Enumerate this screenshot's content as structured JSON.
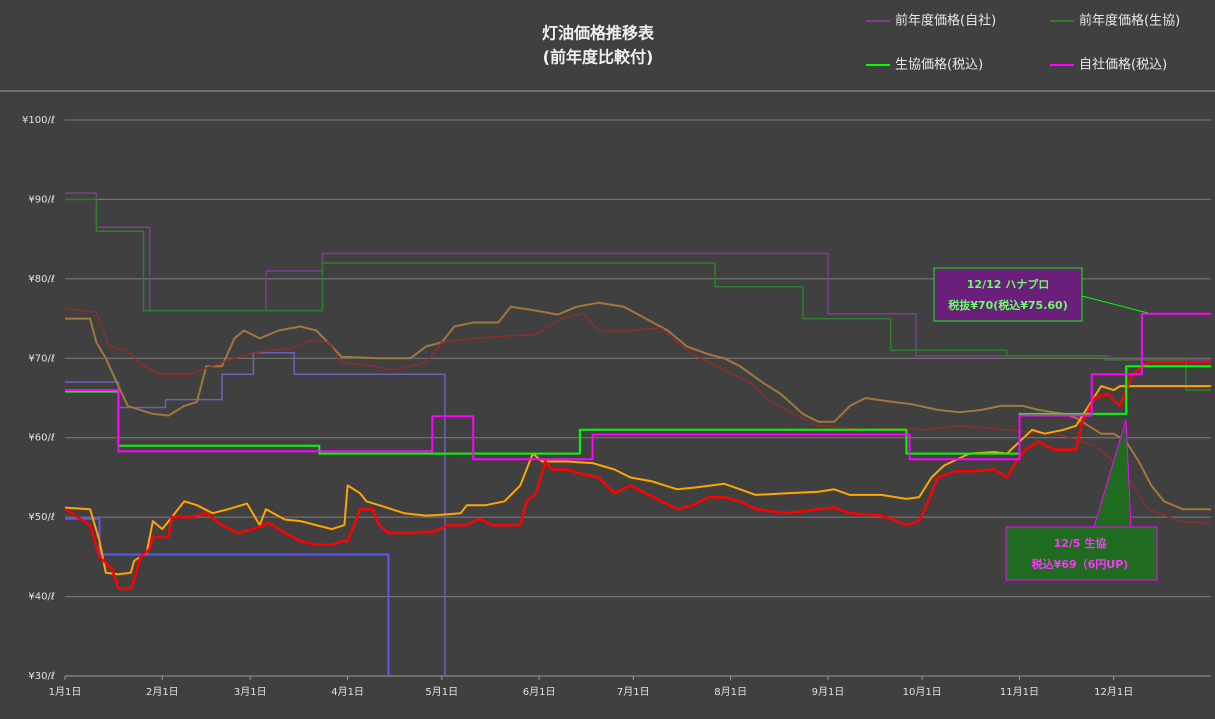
{
  "chart_data": {
    "type": "line",
    "title": "灯油価格推移表",
    "subtitle": "(前年度比較付)",
    "xlim": [
      0,
      365
    ],
    "xticks": [
      {
        "value": 0,
        "label": "1月1日"
      },
      {
        "value": 31,
        "label": "2月1日"
      },
      {
        "value": 59,
        "label": "3月1日"
      },
      {
        "value": 90,
        "label": "4月1日"
      },
      {
        "value": 120,
        "label": "5月1日"
      },
      {
        "value": 151,
        "label": "6月1日"
      },
      {
        "value": 181,
        "label": "7月1日"
      },
      {
        "value": 212,
        "label": "8月1日"
      },
      {
        "value": 243,
        "label": "9月1日"
      },
      {
        "value": 273,
        "label": "10月1日"
      },
      {
        "value": 304,
        "label": "11月1日"
      },
      {
        "value": 334,
        "label": "12月1日"
      }
    ],
    "ylim": [
      30,
      100
    ],
    "yticks": [
      {
        "value": 30,
        "label": "¥30/ℓ"
      },
      {
        "value": 40,
        "label": "¥40/ℓ"
      },
      {
        "value": 50,
        "label": "¥50/ℓ"
      },
      {
        "value": 60,
        "label": "¥60/ℓ"
      },
      {
        "value": 70,
        "label": "¥70/ℓ"
      },
      {
        "value": 80,
        "label": "¥80/ℓ"
      },
      {
        "value": 90,
        "label": "¥90/ℓ"
      },
      {
        "value": 100,
        "label": "¥100/ℓ"
      }
    ],
    "grid": true,
    "series": [
      {
        "name": "前年度価格(自社)",
        "color": "#7b3f8c",
        "width": 1.5,
        "x": [
          0,
          10,
          10,
          27,
          27,
          64,
          64,
          82,
          82,
          243,
          243,
          271,
          271,
          333,
          333,
          365
        ],
        "values": [
          90.8,
          90.8,
          86.5,
          86.5,
          76,
          76,
          81,
          81,
          83.2,
          83.2,
          75.6,
          75.6,
          70.3,
          70.3,
          69.8,
          69.8
        ]
      },
      {
        "name": "前年度価格(生協)",
        "color": "#2f7d2f",
        "width": 1.5,
        "x": [
          0,
          10,
          10,
          25,
          25,
          82,
          82,
          207,
          207,
          235,
          235,
          263,
          263,
          300,
          300,
          331,
          331,
          357,
          357,
          365
        ],
        "values": [
          90,
          90,
          86,
          86,
          76,
          76,
          82,
          82,
          79,
          79,
          75,
          75,
          71,
          71,
          70.3,
          70.3,
          69.8,
          69.8,
          66,
          66
        ]
      },
      {
        "color": "#5a5aee",
        "width": 2,
        "x": [
          0,
          11,
          11,
          103,
          103
        ],
        "values": [
          49.8,
          49.8,
          45.3,
          45.3,
          30
        ]
      },
      {
        "color": "#6b63b5",
        "width": 1.5,
        "x": [
          0,
          17,
          17,
          32,
          32,
          50,
          50,
          60,
          60,
          73,
          73,
          121,
          121
        ],
        "values": [
          67,
          67,
          63.8,
          63.8,
          64.8,
          64.8,
          68,
          68,
          70.7,
          70.7,
          68,
          68,
          30
        ]
      },
      {
        "color": "#a0783c",
        "width": 2,
        "x": [
          0,
          8,
          10,
          13,
          17,
          20,
          28,
          33,
          38,
          42,
          45,
          50,
          54,
          57,
          62,
          68,
          75,
          80,
          85,
          88,
          100,
          110,
          115,
          120,
          124,
          130,
          138,
          142,
          150,
          157,
          163,
          170,
          178,
          185,
          192,
          198,
          205,
          210,
          215,
          222,
          228,
          235,
          240,
          245,
          250,
          255,
          262,
          270,
          278,
          285,
          292,
          298,
          305,
          310,
          318,
          322,
          326,
          330,
          334,
          338,
          342,
          346,
          350,
          356,
          365
        ],
        "values": [
          75,
          75,
          72,
          70,
          66.5,
          64,
          63,
          62.8,
          64,
          64.5,
          69,
          69,
          72.5,
          73.5,
          72.5,
          73.5,
          74,
          73.5,
          71.5,
          70.2,
          70,
          70,
          71.5,
          72,
          74,
          74.5,
          74.5,
          76.5,
          76,
          75.5,
          76.5,
          77,
          76.5,
          75,
          73.5,
          71.5,
          70.5,
          70,
          69,
          67,
          65.5,
          63,
          62,
          62,
          64,
          65,
          64.6,
          64.2,
          63.5,
          63.2,
          63.5,
          64,
          64,
          63.5,
          63,
          62.5,
          61.5,
          60.5,
          60.5,
          59.5,
          57,
          54,
          52,
          51,
          51
        ]
      },
      {
        "color": "#8b2e2e",
        "width": 1.5,
        "x": [
          0,
          10,
          14,
          20,
          24,
          30,
          40,
          50,
          58,
          65,
          72,
          78,
          84,
          88,
          95,
          105,
          115,
          120,
          130,
          140,
          150,
          158,
          165,
          170,
          180,
          190,
          195,
          200,
          210,
          218,
          225,
          232,
          240,
          255,
          265,
          275,
          285,
          295,
          305,
          315,
          320,
          328,
          334,
          340,
          345,
          355,
          365
        ],
        "values": [
          76.3,
          75.8,
          71.5,
          71,
          69.3,
          68,
          68,
          69.5,
          70.5,
          71,
          71.2,
          72.3,
          72,
          69.5,
          69.2,
          68.5,
          69.5,
          72,
          72.5,
          72.8,
          73,
          75,
          75.7,
          73.4,
          73.5,
          73.8,
          72,
          70.5,
          68.5,
          67,
          64.5,
          63,
          61.5,
          61,
          61.2,
          61,
          61.5,
          61.2,
          60.8,
          60.5,
          60,
          59,
          57,
          54,
          51,
          49.5,
          49.2
        ]
      },
      {
        "color": "#ffa500",
        "width": 2,
        "x": [
          0,
          8,
          11,
          13,
          17,
          21,
          22,
          26,
          28,
          31,
          34,
          38,
          42,
          47,
          52,
          58,
          62,
          64,
          70,
          75,
          80,
          85,
          89,
          90,
          94,
          96,
          100,
          108,
          115,
          120,
          126,
          128,
          134,
          140,
          145,
          149,
          152,
          160,
          168,
          175,
          180,
          187,
          195,
          200,
          210,
          215,
          220,
          230,
          240,
          245,
          250,
          260,
          268,
          272,
          276,
          280,
          288,
          296,
          300,
          304,
          308,
          312,
          318,
          322,
          326,
          330,
          334,
          336,
          365
        ],
        "values": [
          51.2,
          51,
          47,
          43,
          42.8,
          43,
          44.5,
          45.5,
          49.5,
          48.5,
          50,
          52,
          51.5,
          50.5,
          51,
          51.7,
          49,
          51,
          49.7,
          49.5,
          49,
          48.5,
          49,
          54,
          53,
          52,
          51.5,
          50.5,
          50.2,
          50.3,
          50.5,
          51.5,
          51.5,
          52,
          54,
          58,
          57,
          57,
          56.8,
          56,
          55,
          54.5,
          53.5,
          53.7,
          54.2,
          53.5,
          52.8,
          53,
          53.2,
          53.5,
          52.8,
          52.8,
          52.3,
          52.5,
          55,
          56.5,
          58,
          58.2,
          58,
          59.5,
          61,
          60.5,
          61,
          61.5,
          64,
          66.5,
          66,
          66.5,
          66.5
        ]
      },
      {
        "color": "#ff0000",
        "width": 2.5,
        "x": [
          0,
          8,
          11,
          15,
          17,
          21,
          22,
          24,
          27,
          28,
          33,
          34,
          40,
          45,
          50,
          55,
          60,
          65,
          70,
          75,
          80,
          85,
          88,
          90,
          92,
          94,
          98,
          100,
          103,
          110,
          118,
          122,
          128,
          132,
          136,
          145,
          147,
          150,
          153,
          155,
          160,
          164,
          170,
          175,
          180,
          185,
          190,
          195,
          200,
          205,
          210,
          215,
          220,
          230,
          240,
          245,
          250,
          260,
          265,
          268,
          272,
          275,
          278,
          284,
          290,
          296,
          300,
          303,
          306,
          310,
          315,
          322,
          324,
          328,
          332,
          336,
          340,
          345,
          365
        ],
        "values": [
          51,
          49,
          45,
          43.5,
          41,
          41,
          42,
          45,
          46,
          47.5,
          47.5,
          50,
          50,
          50.5,
          49,
          48,
          48.5,
          49.3,
          48,
          47,
          46.5,
          46.5,
          47,
          47,
          49,
          51,
          51,
          49,
          48,
          48,
          48.2,
          49,
          49,
          49.8,
          49,
          49,
          52,
          53,
          57,
          56,
          56,
          55.5,
          55,
          53,
          54,
          53,
          52,
          51,
          51.5,
          52.5,
          52.5,
          52,
          51,
          50.5,
          51,
          51.2,
          50.5,
          50.2,
          49.5,
          49,
          49.5,
          52,
          55,
          55.8,
          55.8,
          56,
          55,
          57,
          58.5,
          59.5,
          58.5,
          58.5,
          62,
          65,
          65.5,
          64,
          68,
          69.5,
          69.5
        ]
      },
      {
        "name": "生協価格(税込)",
        "color": "#00ff00",
        "width": 2,
        "x": [
          0,
          17,
          17,
          81,
          81,
          164,
          164,
          268,
          268,
          304,
          304,
          338,
          338,
          365
        ],
        "values": [
          65.8,
          65.8,
          59,
          59,
          58,
          58,
          61,
          61,
          58,
          58,
          63,
          63,
          69,
          69
        ]
      },
      {
        "name": "自社価格(税込)",
        "color": "#ff00ff",
        "width": 2,
        "x": [
          0,
          17,
          17,
          117,
          117,
          130,
          130,
          168,
          168,
          269,
          269,
          304,
          304,
          327,
          327,
          343,
          343,
          365
        ],
        "values": [
          66,
          66,
          58.3,
          58.3,
          62.7,
          62.7,
          57.3,
          57.3,
          60.4,
          60.4,
          57.3,
          57.3,
          62.8,
          62.8,
          68,
          68,
          75.6,
          75.6
        ]
      }
    ],
    "annotations": [
      {
        "title": "12/12 ハナプロ",
        "text": "税抜¥70(税込¥75.60)"
      },
      {
        "title": "12/5 生協",
        "text": "税込¥69（6円UP)"
      }
    ]
  }
}
